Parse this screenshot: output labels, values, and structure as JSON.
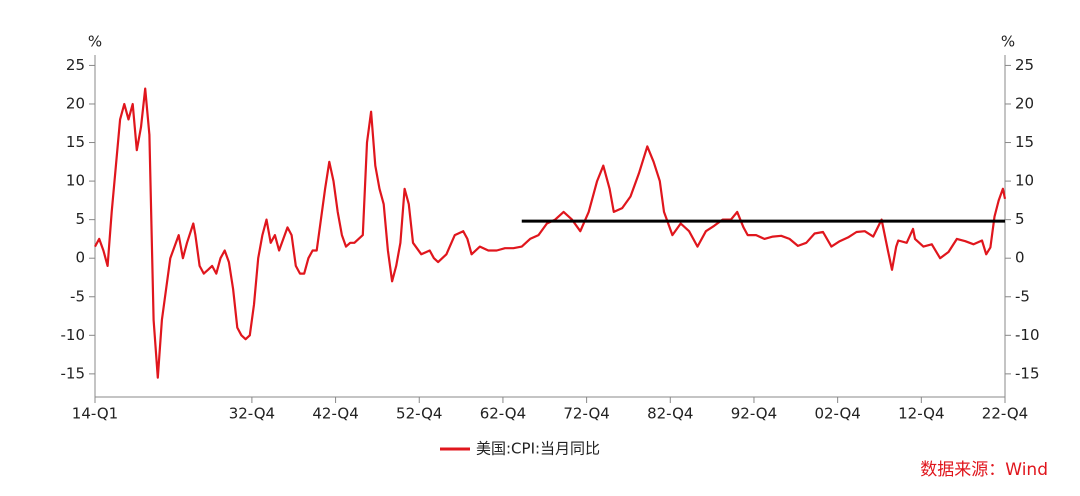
{
  "chart_data": {
    "type": "line",
    "y_label": "%",
    "y2_label": "%",
    "x": [
      1914,
      1914.5,
      1915,
      1915.5,
      1916,
      1916.5,
      1917,
      1917.5,
      1918,
      1918.5,
      1919,
      1919.5,
      1920,
      1920.5,
      1921,
      1921.5,
      1922,
      1922.5,
      1923,
      1924,
      1924.5,
      1925,
      1925.75,
      1926,
      1926.5,
      1927,
      1927.5,
      1928,
      1928.5,
      1929,
      1929.5,
      1930,
      1930.5,
      1931,
      1931.5,
      1932,
      1932.5,
      1933,
      1933.5,
      1934,
      1934.5,
      1935,
      1935.5,
      1936,
      1937,
      1937.5,
      1938,
      1938.5,
      1939,
      1939.5,
      1940,
      1940.5,
      1941,
      1941.5,
      1942,
      1942.5,
      1943,
      1943.5,
      1944,
      1944.5,
      1945,
      1945.5,
      1946,
      1946.5,
      1947,
      1947.5,
      1948,
      1948.5,
      1949,
      1949.5,
      1950,
      1950.5,
      1951,
      1951.5,
      1952,
      1953,
      1954,
      1954.5,
      1955,
      1956,
      1957,
      1958,
      1958.5,
      1959,
      1960,
      1961,
      1962,
      1963,
      1964,
      1965,
      1966,
      1967,
      1968,
      1969,
      1970,
      1971,
      1972,
      1973,
      1974,
      1974.75,
      1975.5,
      1976,
      1977,
      1978,
      1979,
      1980,
      1980.75,
      1981.5,
      1982,
      1983,
      1984,
      1985,
      1986,
      1987,
      1988,
      1989,
      1990,
      1990.75,
      1991.5,
      1992,
      1993,
      1994,
      1995,
      1996,
      1997,
      1998,
      1999,
      2000,
      2001,
      2002,
      2003,
      2004,
      2005,
      2006,
      2007,
      2008,
      2008.75,
      2009.25,
      2009.75,
      2010,
      2011,
      2011.75,
      2012,
      2013,
      2014,
      2015,
      2016,
      2017,
      2018,
      2019,
      2020,
      2020.5,
      2021,
      2021.5,
      2022,
      2022.5,
      2022.75
    ],
    "series": [
      {
        "name": "美国:CPI:当月同比",
        "color": "#e0161d",
        "values": [
          1.5,
          2.5,
          1,
          -1,
          6,
          12,
          18,
          20,
          18,
          20,
          14,
          17,
          22,
          16,
          -8,
          -15.5,
          -8,
          -4,
          0,
          3,
          0,
          2,
          4.5,
          3,
          -1,
          -2,
          -1.5,
          -1,
          -2,
          0,
          1,
          -0.5,
          -4,
          -9,
          -10,
          -10.5,
          -10,
          -6,
          0,
          3,
          5,
          2,
          3,
          1,
          4,
          3,
          -1,
          -2,
          -2,
          0,
          1,
          1,
          5,
          9,
          12.5,
          10,
          6,
          3,
          1.5,
          2,
          2,
          2.5,
          3,
          15,
          19,
          12,
          9,
          7,
          1,
          -3,
          -1,
          2,
          9,
          7,
          2,
          0.5,
          1,
          0,
          -0.5,
          0.5,
          3,
          3.5,
          2.5,
          0.5,
          1.5,
          1,
          1,
          1.3,
          1.3,
          1.5,
          2.5,
          3,
          4.5,
          5,
          6,
          5,
          3.5,
          6,
          10,
          12,
          9,
          6,
          6.5,
          8,
          11,
          14.5,
          12.5,
          10,
          6,
          3,
          4.5,
          3.5,
          1.5,
          3.5,
          4.2,
          5,
          5,
          6,
          4,
          3,
          3,
          2.5,
          2.8,
          2.9,
          2.5,
          1.6,
          2,
          3.2,
          3.4,
          1.5,
          2.2,
          2.7,
          3.4,
          3.5,
          2.8,
          5,
          1,
          -1.5,
          1.5,
          2.3,
          2,
          3.8,
          2.5,
          1.5,
          1.8,
          0,
          0.8,
          2.5,
          2.2,
          1.8,
          2.3,
          0.5,
          1.4,
          5.4,
          7.5,
          9,
          7.7
        ]
      }
    ],
    "reference_line": {
      "value": 4.8,
      "x": [
        1965,
        2022.75
      ],
      "color": "#000000"
    },
    "xlim": [
      1914,
      2022.75
    ],
    "xticks": [
      {
        "value": 1914,
        "label": "14-Q1"
      },
      {
        "value": 1932.75,
        "label": "32-Q4"
      },
      {
        "value": 1942.75,
        "label": "42-Q4"
      },
      {
        "value": 1952.75,
        "label": "52-Q4"
      },
      {
        "value": 1962.75,
        "label": "62-Q4"
      },
      {
        "value": 1972.75,
        "label": "72-Q4"
      },
      {
        "value": 1982.75,
        "label": "82-Q4"
      },
      {
        "value": 1992.75,
        "label": "92-Q4"
      },
      {
        "value": 2002.75,
        "label": "02-Q4"
      },
      {
        "value": 2012.75,
        "label": "12-Q4"
      },
      {
        "value": 2022.75,
        "label": "22-Q4"
      }
    ],
    "ylim": [
      -18,
      27
    ],
    "yticks": [
      25,
      20,
      15,
      10,
      5,
      0,
      -5,
      -10,
      -15
    ],
    "y2lim": [
      -18,
      27
    ],
    "y2ticks": [
      25,
      20,
      15,
      10,
      5,
      0,
      -5,
      -10,
      -15
    ],
    "source": "数据来源：Wind"
  }
}
